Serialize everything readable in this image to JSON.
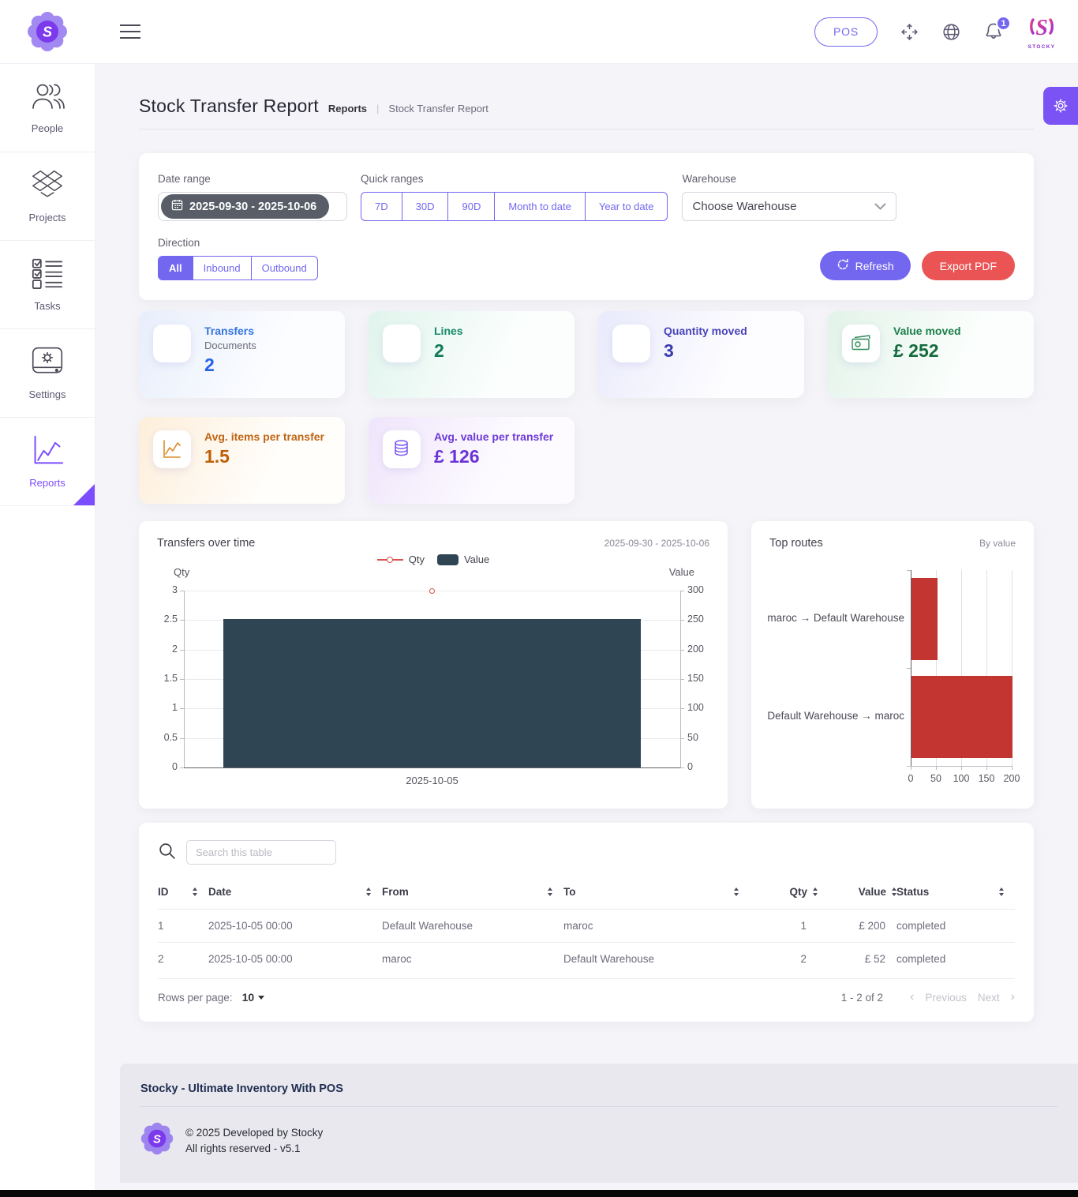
{
  "topbar": {
    "logo_letter": "S",
    "pos_label": "POS",
    "icons": [
      "fullscreen-icon",
      "globe-icon",
      "bell-icon"
    ],
    "notification_count": "1",
    "brand_name": "STOCKY"
  },
  "sidebar": {
    "items": [
      {
        "label": "People",
        "icon": "people-icon",
        "active": false
      },
      {
        "label": "Projects",
        "icon": "projects-icon",
        "active": false
      },
      {
        "label": "Tasks",
        "icon": "tasks-icon",
        "active": false
      },
      {
        "label": "Settings",
        "icon": "settings-icon",
        "active": false
      },
      {
        "label": "Reports",
        "icon": "reports-icon",
        "active": true
      }
    ]
  },
  "page": {
    "title": "Stock Transfer Report",
    "breadcrumb_section": "Reports",
    "breadcrumb_separator": "|",
    "breadcrumb_current": "Stock Transfer Report"
  },
  "filters": {
    "date_range": {
      "label": "Date range",
      "value": "2025-09-30 - 2025-10-06",
      "icon": "calendar-icon"
    },
    "quick_ranges": {
      "label": "Quick ranges",
      "options": [
        "7D",
        "30D",
        "90D",
        "Month to date",
        "Year to date"
      ]
    },
    "warehouse": {
      "label": "Warehouse",
      "value": "Choose Warehouse"
    },
    "direction": {
      "label": "Direction",
      "options": [
        "All",
        "Inbound",
        "Outbound"
      ],
      "selected": "All"
    },
    "refresh_label": "Refresh",
    "export_label": "Export PDF",
    "accent_color": "#7367f0",
    "danger_color": "#ea5455"
  },
  "stats": [
    {
      "title": "Transfers",
      "subtitle": "Documents",
      "value": "2",
      "icon": "blank-icon",
      "theme": "blue"
    },
    {
      "title": "Lines",
      "subtitle": "",
      "value": "2",
      "icon": "blank-icon",
      "theme": "teal"
    },
    {
      "title": "Quantity moved",
      "subtitle": "",
      "value": "3",
      "icon": "blank-icon",
      "theme": "indigo"
    },
    {
      "title": "Value moved",
      "subtitle": "",
      "value": "£ 252",
      "icon": "banknote-icon",
      "theme": "green"
    },
    {
      "title": "Avg. items per transfer",
      "subtitle": "",
      "value": "1.5",
      "icon": "trend-icon",
      "theme": "orange"
    },
    {
      "title": "Avg. value per transfer",
      "subtitle": "",
      "value": "£ 126",
      "icon": "coins-icon",
      "theme": "purple"
    }
  ],
  "chart_data": [
    {
      "type": "bar",
      "title": "Transfers over time",
      "subtitle": "2025-09-30 - 2025-10-06",
      "categories": [
        "2025-10-05"
      ],
      "series": [
        {
          "name": "Qty",
          "type": "line",
          "values": [
            3
          ],
          "color": "#d9534f",
          "axis": "left"
        },
        {
          "name": "Value",
          "type": "bar",
          "values": [
            252
          ],
          "color": "#2f4554",
          "axis": "right"
        }
      ],
      "left_axis": {
        "label": "Qty",
        "min": 0,
        "max": 3,
        "ticks": [
          3,
          2.5,
          2,
          1.5,
          1,
          0.5,
          0
        ]
      },
      "right_axis": {
        "label": "Value",
        "min": 0,
        "max": 300,
        "ticks": [
          300,
          250,
          200,
          150,
          100,
          50,
          0
        ]
      },
      "legend_position": "top",
      "grid": true
    },
    {
      "type": "bar",
      "orientation": "horizontal",
      "title": "Top routes",
      "subtitle": "By value",
      "categories": [
        "maroc → Default Warehouse",
        "Default Warehouse → maroc"
      ],
      "values": [
        52,
        200
      ],
      "color": "#c23531",
      "xlim": [
        0,
        200
      ],
      "x_ticks": [
        0,
        50,
        100,
        150,
        200
      ],
      "grid": true
    }
  ],
  "table": {
    "search_placeholder": "Search this table",
    "search_icon": "search-icon",
    "columns": [
      "ID",
      "Date",
      "From",
      "To",
      "Qty",
      "Value",
      "Status"
    ],
    "rows": [
      {
        "id": "1",
        "date": "2025-10-05 00:00",
        "from": "Default Warehouse",
        "to": "maroc",
        "qty": "1",
        "value": "£ 200",
        "status": "completed"
      },
      {
        "id": "2",
        "date": "2025-10-05 00:00",
        "from": "maroc",
        "to": "Default Warehouse",
        "qty": "2",
        "value": "£ 52",
        "status": "completed"
      }
    ],
    "rows_per_page_label": "Rows per page:",
    "rows_per_page_value": "10",
    "range_text": "1 - 2 of 2",
    "previous_label": "Previous",
    "next_label": "Next"
  },
  "footer": {
    "title": "Stocky - Ultimate Inventory With POS",
    "copyright": "© 2025 Developed by Stocky",
    "rights": "All rights reserved - v5.1"
  }
}
